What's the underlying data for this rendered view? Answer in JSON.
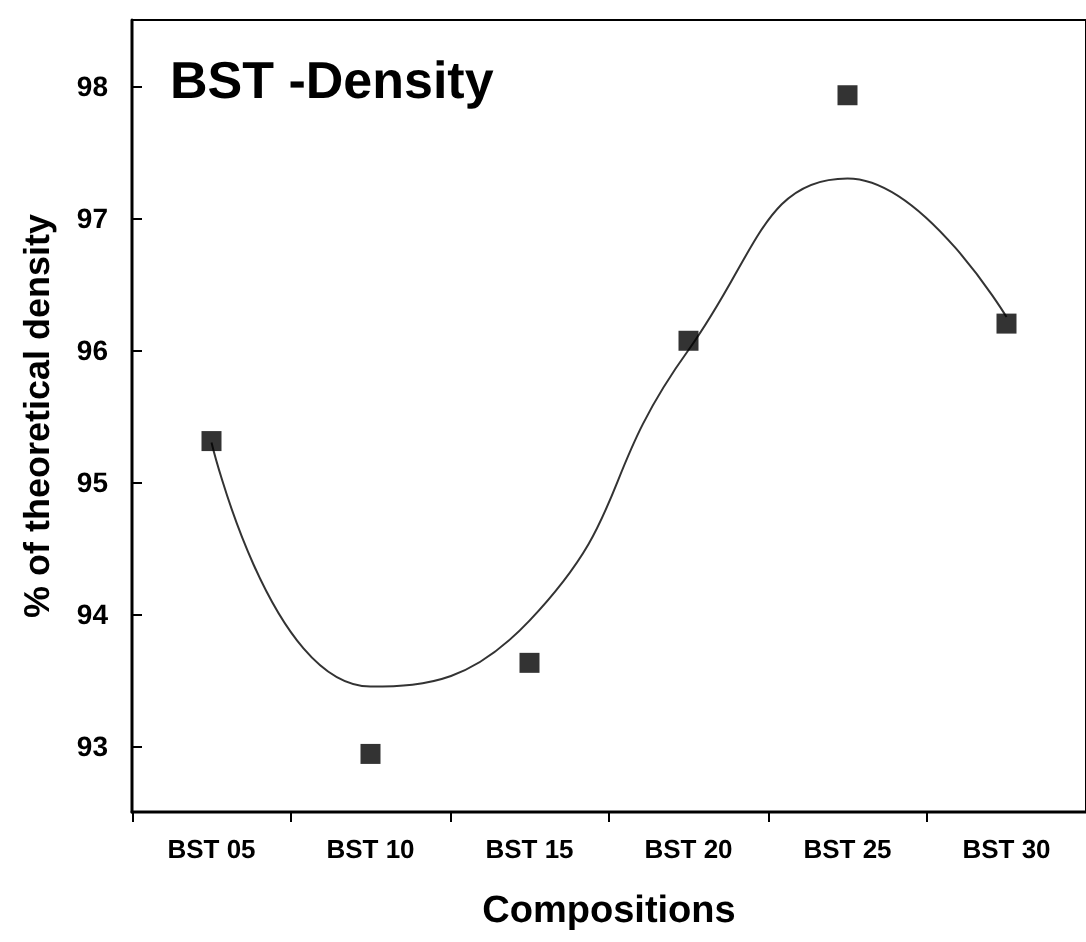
{
  "chart_data": {
    "type": "scatter",
    "title": "BST -Density",
    "xlabel": "Compositions",
    "ylabel": "% of theoretical density",
    "categories": [
      "BST 05",
      "BST 10",
      "BST 15",
      "BST 20",
      "BST 25",
      "BST 30"
    ],
    "series": [
      {
        "color": "#000000",
        "marker": "square",
        "values": [
          95.31,
          92.94,
          93.63,
          96.07,
          97.93,
          96.2
        ]
      },
      {
        "type": "line",
        "color": "#333333",
        "marker": "none",
        "values": [
          95.3,
          93.45,
          93.95,
          96.0,
          97.3,
          96.25
        ]
      }
    ],
    "ylim": [
      92.5,
      98.5
    ],
    "yticks": [
      93,
      94,
      95,
      96,
      97,
      98
    ],
    "grid": false
  }
}
